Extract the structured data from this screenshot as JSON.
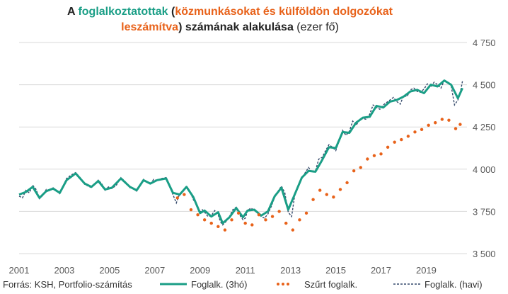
{
  "title": {
    "p1": "A ",
    "p2": "foglalkoztatottak",
    "p3": " (",
    "p4": "közmunkásokat és külföldön dolgozókat",
    "p5": "leszámítva",
    "p6": ")  számának alakulása",
    "p7": " (ezer fő)"
  },
  "colors": {
    "teal": "#1a9e86",
    "orange": "#e8621a",
    "navy": "#34496b",
    "grid": "#d9d9d9",
    "axis_text": "#595959"
  },
  "source": "Forrás: KSH, Portfolio-számítás",
  "chart_data": {
    "type": "line",
    "title": "A foglalkoztatottak (közmunkásokat és külföldön dolgozókat leszámítva)  számának alakulása (ezer fő)",
    "ylim": [
      3500,
      4750
    ],
    "xlim": [
      2001,
      2020.8
    ],
    "y_ticks": [
      3500,
      3750,
      4000,
      4250,
      4500,
      4750
    ],
    "y_tick_labels": [
      "3 500",
      "3 750",
      "4 000",
      "4 250",
      "4 500",
      "4 750"
    ],
    "x_ticks": [
      2001,
      2003,
      2005,
      2007,
      2009,
      2011,
      2013,
      2015,
      2017,
      2019
    ],
    "x_tick_labels": [
      "2001",
      "2003",
      "2005",
      "2007",
      "2009",
      "2011",
      "2013",
      "2015",
      "2017",
      "2019"
    ],
    "grid": true,
    "legend": "bottom",
    "series": [
      {
        "name": "Foglalk. (3hó)",
        "style": "line",
        "x": [
          2001.0,
          2001.3,
          2001.6,
          2001.9,
          2002.2,
          2002.5,
          2002.8,
          2003.1,
          2003.5,
          2003.9,
          2004.2,
          2004.5,
          2004.8,
          2005.1,
          2005.5,
          2005.9,
          2006.2,
          2006.5,
          2006.8,
          2007.1,
          2007.5,
          2007.8,
          2008.1,
          2008.4,
          2008.7,
          2009.0,
          2009.2,
          2009.5,
          2009.8,
          2010.0,
          2010.3,
          2010.6,
          2010.9,
          2011.1,
          2011.4,
          2011.7,
          2012.0,
          2012.3,
          2012.6,
          2012.9,
          2013.2,
          2013.5,
          2013.8,
          2014.1,
          2014.4,
          2014.7,
          2015.0,
          2015.3,
          2015.6,
          2015.9,
          2016.2,
          2016.5,
          2016.8,
          2017.1,
          2017.4,
          2017.7,
          2018.0,
          2018.3,
          2018.6,
          2018.9,
          2019.2,
          2019.5,
          2019.8,
          2020.1,
          2020.4,
          2020.6
        ],
        "y": [
          3850,
          3865,
          3895,
          3830,
          3870,
          3885,
          3860,
          3935,
          3975,
          3915,
          3895,
          3930,
          3880,
          3890,
          3945,
          3895,
          3875,
          3935,
          3915,
          3935,
          3945,
          3860,
          3850,
          3895,
          3835,
          3740,
          3755,
          3720,
          3745,
          3680,
          3715,
          3770,
          3715,
          3755,
          3760,
          3725,
          3750,
          3840,
          3890,
          3760,
          3855,
          3950,
          3990,
          3985,
          4055,
          4130,
          4125,
          4220,
          4215,
          4275,
          4305,
          4310,
          4375,
          4365,
          4400,
          4410,
          4430,
          4460,
          4470,
          4450,
          4500,
          4490,
          4525,
          4500,
          4420,
          4480
        ]
      },
      {
        "name": "Szűrt foglalk.",
        "style": "dots",
        "x": [
          2008.0,
          2008.3,
          2008.6,
          2008.9,
          2009.2,
          2009.5,
          2009.8,
          2010.1,
          2010.4,
          2010.7,
          2011.0,
          2011.3,
          2011.6,
          2011.9,
          2012.2,
          2012.5,
          2012.8,
          2013.1,
          2013.4,
          2013.7,
          2014.0,
          2014.3,
          2014.6,
          2014.9,
          2015.2,
          2015.5,
          2015.8,
          2016.1,
          2016.4,
          2016.7,
          2017.0,
          2017.3,
          2017.6,
          2017.9,
          2018.2,
          2018.5,
          2018.8,
          2019.1,
          2019.4,
          2019.7,
          2020.0,
          2020.3,
          2020.5
        ],
        "y": [
          3830,
          3850,
          3760,
          3730,
          3700,
          3680,
          3660,
          3640,
          3700,
          3740,
          3680,
          3670,
          3730,
          3700,
          3720,
          3750,
          3680,
          3640,
          3700,
          3740,
          3820,
          3875,
          3850,
          3835,
          3880,
          3920,
          3990,
          4010,
          4060,
          4080,
          4090,
          4130,
          4160,
          4175,
          4195,
          4220,
          4235,
          4260,
          4275,
          4295,
          4290,
          4240,
          4265
        ]
      },
      {
        "name": "Foglalk. (havi)",
        "style": "dashed",
        "x": [
          2001.0,
          2001.15,
          2001.3,
          2001.45,
          2001.6,
          2001.75,
          2001.9,
          2002.05,
          2002.2,
          2002.35,
          2002.5,
          2002.65,
          2002.8,
          2002.95,
          2003.1,
          2003.3,
          2003.5,
          2003.7,
          2003.9,
          2004.05,
          2004.2,
          2004.35,
          2004.5,
          2004.65,
          2004.8,
          2004.95,
          2005.1,
          2005.3,
          2005.5,
          2005.7,
          2005.9,
          2006.05,
          2006.2,
          2006.35,
          2006.5,
          2006.65,
          2006.8,
          2006.95,
          2007.1,
          2007.3,
          2007.5,
          2007.65,
          2007.8,
          2007.95,
          2008.1,
          2008.25,
          2008.4,
          2008.55,
          2008.7,
          2008.85,
          2009.0,
          2009.1,
          2009.2,
          2009.35,
          2009.5,
          2009.65,
          2009.8,
          2009.9,
          2010.0,
          2010.15,
          2010.3,
          2010.45,
          2010.6,
          2010.75,
          2010.9,
          2011.0,
          2011.1,
          2011.25,
          2011.4,
          2011.55,
          2011.7,
          2011.85,
          2012.0,
          2012.15,
          2012.3,
          2012.45,
          2012.6,
          2012.75,
          2012.9,
          2013.05,
          2013.2,
          2013.35,
          2013.5,
          2013.65,
          2013.8,
          2013.95,
          2014.1,
          2014.25,
          2014.4,
          2014.55,
          2014.7,
          2014.85,
          2015.0,
          2015.15,
          2015.3,
          2015.45,
          2015.6,
          2015.75,
          2015.9,
          2016.05,
          2016.2,
          2016.35,
          2016.5,
          2016.65,
          2016.8,
          2016.95,
          2017.1,
          2017.25,
          2017.4,
          2017.55,
          2017.7,
          2017.85,
          2018.0,
          2018.15,
          2018.3,
          2018.45,
          2018.6,
          2018.75,
          2018.9,
          2019.05,
          2019.2,
          2019.35,
          2019.5,
          2019.65,
          2019.8,
          2019.95,
          2020.1,
          2020.25,
          2020.4,
          2020.5,
          2020.6
        ],
        "y": [
          3840,
          3830,
          3875,
          3860,
          3905,
          3880,
          3825,
          3845,
          3880,
          3870,
          3890,
          3875,
          3855,
          3900,
          3945,
          3965,
          3980,
          3950,
          3910,
          3900,
          3890,
          3915,
          3935,
          3915,
          3875,
          3895,
          3885,
          3905,
          3950,
          3925,
          3890,
          3885,
          3870,
          3905,
          3940,
          3925,
          3910,
          3940,
          3930,
          3945,
          3950,
          3900,
          3850,
          3800,
          3855,
          3875,
          3900,
          3870,
          3820,
          3790,
          3745,
          3760,
          3745,
          3720,
          3725,
          3755,
          3730,
          3690,
          3670,
          3690,
          3720,
          3760,
          3775,
          3730,
          3700,
          3710,
          3755,
          3770,
          3755,
          3740,
          3720,
          3710,
          3735,
          3780,
          3835,
          3870,
          3900,
          3860,
          3745,
          3720,
          3860,
          3900,
          3945,
          3980,
          4010,
          3980,
          3990,
          4060,
          4070,
          4110,
          4145,
          4130,
          4110,
          4170,
          4230,
          4200,
          4225,
          4285,
          4260,
          4290,
          4300,
          4295,
          4325,
          4380,
          4365,
          4355,
          4380,
          4395,
          4410,
          4425,
          4400,
          4385,
          4435,
          4430,
          4470,
          4480,
          4460,
          4455,
          4475,
          4505,
          4485,
          4515,
          4500,
          4480,
          4525,
          4515,
          4495,
          4380,
          4410,
          4450,
          4520
        ]
      }
    ]
  }
}
